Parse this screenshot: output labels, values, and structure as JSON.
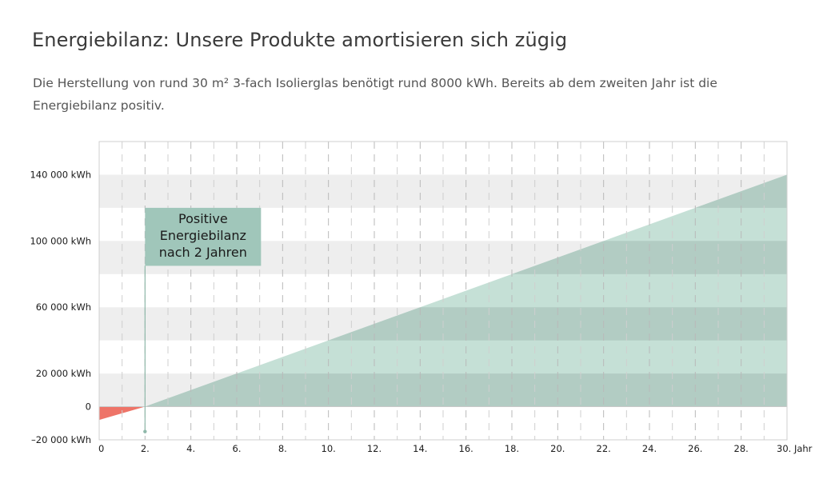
{
  "header": {
    "title": "Energiebilanz: Unsere Produkte amortisieren sich zügig",
    "subtitle": "Die Herstellung von rund 30 m² 3-fach Isolierglas benötigt rund 8000 kWh. Bereits ab dem zweiten Jahr ist die Energiebilanz positiv."
  },
  "chart_data": {
    "type": "area",
    "x": [
      0,
      2,
      30
    ],
    "y": [
      -8000,
      0,
      140000
    ],
    "xlim": [
      0,
      30
    ],
    "ylim": [
      -20000,
      160000
    ],
    "x_ticks": [
      {
        "value": 0,
        "label": "0"
      },
      {
        "value": 2,
        "label": "2."
      },
      {
        "value": 4,
        "label": "4."
      },
      {
        "value": 6,
        "label": "6."
      },
      {
        "value": 8,
        "label": "8."
      },
      {
        "value": 10,
        "label": "10."
      },
      {
        "value": 12,
        "label": "12."
      },
      {
        "value": 14,
        "label": "14."
      },
      {
        "value": 16,
        "label": "16."
      },
      {
        "value": 18,
        "label": "18."
      },
      {
        "value": 20,
        "label": "20."
      },
      {
        "value": 22,
        "label": "22."
      },
      {
        "value": 24,
        "label": "24."
      },
      {
        "value": 26,
        "label": "26."
      },
      {
        "value": 28,
        "label": "28."
      },
      {
        "value": 30,
        "label": "30. Jahr"
      }
    ],
    "y_ticks": [
      {
        "value": 140000,
        "label": "140 000 kWh"
      },
      {
        "value": 100000,
        "label": "100 000 kWh"
      },
      {
        "value": 60000,
        "label": "60 000 kWh"
      },
      {
        "value": 20000,
        "label": "20 000 kWh"
      },
      {
        "value": 0,
        "label": "0"
      },
      {
        "value": -20000,
        "label": "–20 000 kWh"
      }
    ],
    "bands": [
      [
        0,
        20000
      ],
      [
        40000,
        60000
      ],
      [
        80000,
        100000
      ],
      [
        120000,
        140000
      ]
    ],
    "grid": true,
    "annotation": {
      "x": 2,
      "y_from": -15000,
      "lines": [
        "Positive",
        "Energiebilanz",
        "nach 2 Jahren"
      ]
    },
    "colors": {
      "negative": "#ee7468",
      "positive": "#c5e0d6",
      "positive_on_band": "#b2ccc3",
      "band": "#eeeeee",
      "callout_box": "#a0c6ba",
      "callout_line": "#8fb8aa"
    }
  }
}
